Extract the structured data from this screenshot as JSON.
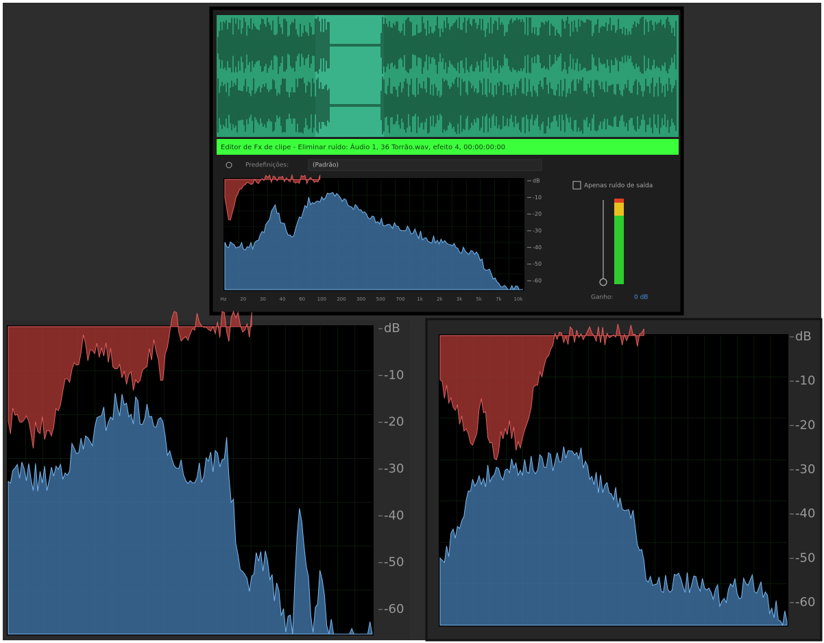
{
  "top_panel": {
    "title_bar": "Editor de Fx de clipe - Eliminar ruído: Áudio 1, 36 Torrão.wav, efeito 4, 00:00:00:00",
    "presets_label": "Predefinições:",
    "presets_value": "(Padrão)",
    "output_noise_label": "Apenas ruído de saída",
    "gain_label": "Ganho:",
    "gain_value": "0 dB",
    "db_axis": [
      "dB",
      "-10",
      "-20",
      "-30",
      "-40",
      "-50",
      "-60"
    ],
    "freq_axis": [
      "Hz",
      "20",
      "30",
      "40",
      "60",
      "100",
      "200",
      "300",
      "500",
      "700",
      "1k",
      "2k",
      "3k",
      "5k",
      "7k",
      "10k"
    ]
  },
  "left_panel": {
    "db_axis": [
      "dB",
      "-10",
      "-20",
      "-30",
      "-40",
      "-50",
      "-60"
    ]
  },
  "right_panel": {
    "db_axis": [
      "dB",
      "-10",
      "-20",
      "-30",
      "-40",
      "-50",
      "-60"
    ]
  }
}
